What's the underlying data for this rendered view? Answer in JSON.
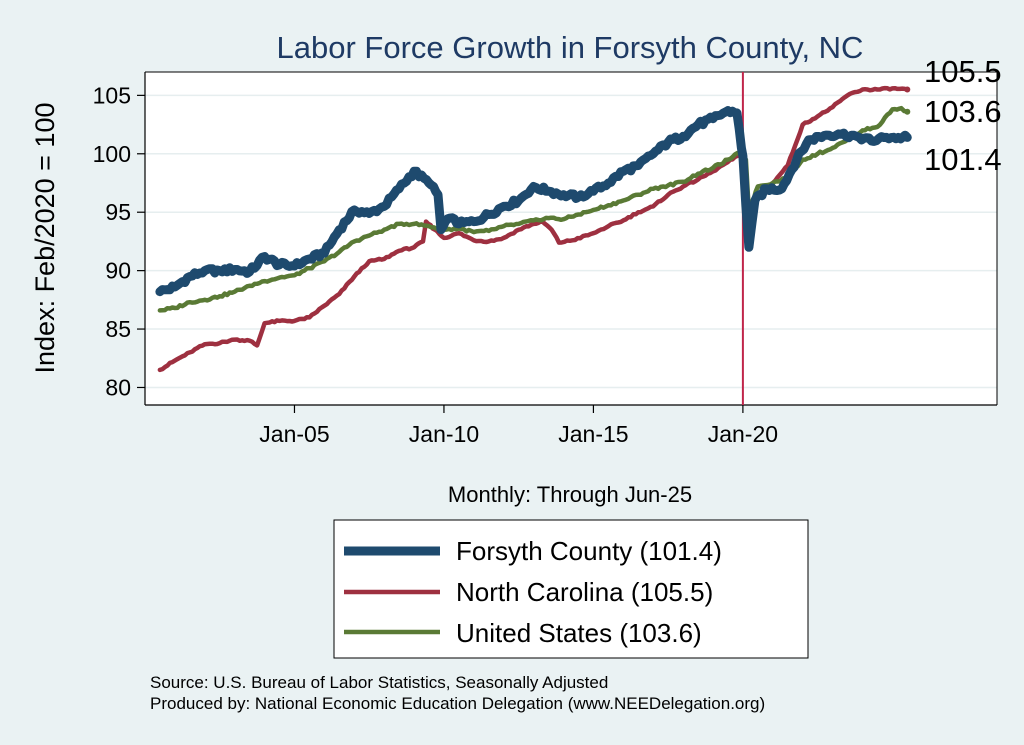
{
  "chart_data": {
    "type": "line",
    "title": "Labor Force Growth in Forsyth  County, NC",
    "xlabel": "Monthly: Through Jun-25",
    "ylabel": "Index: Feb/2020 = 100",
    "xlim": [
      2000.0,
      2028.5
    ],
    "ylim": [
      78.5,
      107.0
    ],
    "y_ticks": [
      80,
      85,
      90,
      95,
      100,
      105
    ],
    "x_ticks": [
      {
        "value": 2005.0,
        "label": "Jan-05"
      },
      {
        "value": 2010.0,
        "label": "Jan-10"
      },
      {
        "value": 2015.0,
        "label": "Jan-15"
      },
      {
        "value": 2020.0,
        "label": "Jan-20"
      }
    ],
    "vertical_line": {
      "x": 2020.0,
      "color": "#c0254a"
    },
    "legend_position": "bottom-center",
    "series": [
      {
        "name": "Forsyth County",
        "color": "#1e4a6e",
        "width": 9,
        "end_label": "101.4",
        "points": [
          [
            2000.5,
            88.2
          ],
          [
            2001.0,
            88.6
          ],
          [
            2001.5,
            89.5
          ],
          [
            2002.0,
            90.0
          ],
          [
            2002.5,
            90.0
          ],
          [
            2003.0,
            90.1
          ],
          [
            2003.5,
            89.9
          ],
          [
            2004.0,
            91.2
          ],
          [
            2004.5,
            90.5
          ],
          [
            2005.0,
            90.4
          ],
          [
            2005.5,
            91.0
          ],
          [
            2006.0,
            91.5
          ],
          [
            2006.5,
            93.5
          ],
          [
            2007.0,
            95.2
          ],
          [
            2007.5,
            94.9
          ],
          [
            2008.0,
            95.5
          ],
          [
            2008.5,
            97.0
          ],
          [
            2009.0,
            98.5
          ],
          [
            2009.5,
            97.5
          ],
          [
            2009.8,
            96.5
          ],
          [
            2009.9,
            93.5
          ],
          [
            2010.2,
            94.5
          ],
          [
            2010.5,
            94.0
          ],
          [
            2011.0,
            94.2
          ],
          [
            2011.5,
            94.8
          ],
          [
            2012.0,
            95.5
          ],
          [
            2012.5,
            96.0
          ],
          [
            2013.0,
            97.2
          ],
          [
            2013.5,
            96.8
          ],
          [
            2014.0,
            96.5
          ],
          [
            2014.5,
            96.3
          ],
          [
            2015.0,
            96.8
          ],
          [
            2015.5,
            97.5
          ],
          [
            2016.0,
            98.5
          ],
          [
            2016.5,
            99.0
          ],
          [
            2017.0,
            100.0
          ],
          [
            2017.5,
            101.0
          ],
          [
            2018.0,
            101.5
          ],
          [
            2018.5,
            102.5
          ],
          [
            2019.0,
            103.0
          ],
          [
            2019.5,
            103.7
          ],
          [
            2019.8,
            103.5
          ],
          [
            2019.95,
            100.5
          ],
          [
            2020.0,
            99.8
          ],
          [
            2020.1,
            95.5
          ],
          [
            2020.2,
            92.0
          ],
          [
            2020.4,
            96.0
          ],
          [
            2020.8,
            97.0
          ],
          [
            2021.3,
            97.0
          ],
          [
            2021.8,
            99.5
          ],
          [
            2022.2,
            101.2
          ],
          [
            2022.8,
            101.6
          ],
          [
            2023.2,
            101.7
          ],
          [
            2023.8,
            101.5
          ],
          [
            2024.3,
            101.1
          ],
          [
            2024.8,
            101.4
          ],
          [
            2025.2,
            101.4
          ],
          [
            2025.5,
            101.4
          ]
        ]
      },
      {
        "name": "North Carolina",
        "color": "#9e3040",
        "width": 4.5,
        "end_label": "105.5",
        "points": [
          [
            2000.5,
            81.5
          ],
          [
            2001.0,
            82.3
          ],
          [
            2001.5,
            83.0
          ],
          [
            2002.0,
            83.7
          ],
          [
            2002.5,
            83.8
          ],
          [
            2003.0,
            84.1
          ],
          [
            2003.5,
            84.0
          ],
          [
            2003.75,
            83.6
          ],
          [
            2004.0,
            85.5
          ],
          [
            2004.5,
            85.7
          ],
          [
            2005.0,
            85.7
          ],
          [
            2005.5,
            86.0
          ],
          [
            2006.0,
            87.0
          ],
          [
            2006.5,
            88.0
          ],
          [
            2007.0,
            89.5
          ],
          [
            2007.5,
            90.8
          ],
          [
            2008.0,
            91.0
          ],
          [
            2008.5,
            91.7
          ],
          [
            2009.0,
            92.0
          ],
          [
            2009.3,
            92.5
          ],
          [
            2009.4,
            94.2
          ],
          [
            2009.7,
            93.5
          ],
          [
            2010.0,
            92.8
          ],
          [
            2010.5,
            93.2
          ],
          [
            2011.0,
            92.6
          ],
          [
            2011.5,
            92.5
          ],
          [
            2012.0,
            92.8
          ],
          [
            2012.5,
            93.5
          ],
          [
            2013.0,
            94.0
          ],
          [
            2013.3,
            94.2
          ],
          [
            2013.6,
            93.5
          ],
          [
            2013.85,
            92.4
          ],
          [
            2014.3,
            92.6
          ],
          [
            2015.0,
            93.2
          ],
          [
            2015.5,
            93.8
          ],
          [
            2016.0,
            94.3
          ],
          [
            2016.5,
            95.0
          ],
          [
            2017.0,
            95.5
          ],
          [
            2017.5,
            96.5
          ],
          [
            2018.0,
            97.2
          ],
          [
            2018.5,
            97.8
          ],
          [
            2019.0,
            98.5
          ],
          [
            2019.5,
            99.3
          ],
          [
            2019.8,
            99.8
          ],
          [
            2020.0,
            100.0
          ],
          [
            2020.1,
            96.0
          ],
          [
            2020.2,
            95.5
          ],
          [
            2020.5,
            96.5
          ],
          [
            2021.0,
            97.5
          ],
          [
            2021.5,
            99.0
          ],
          [
            2022.0,
            102.5
          ],
          [
            2022.5,
            103.2
          ],
          [
            2023.0,
            104.0
          ],
          [
            2023.5,
            105.0
          ],
          [
            2024.0,
            105.5
          ],
          [
            2024.5,
            105.5
          ],
          [
            2025.0,
            105.6
          ],
          [
            2025.5,
            105.5
          ]
        ]
      },
      {
        "name": "United States",
        "color": "#5a7a35",
        "width": 4.5,
        "end_label": "103.6",
        "points": [
          [
            2000.5,
            86.6
          ],
          [
            2001.0,
            86.8
          ],
          [
            2001.5,
            87.3
          ],
          [
            2002.0,
            87.5
          ],
          [
            2002.5,
            87.8
          ],
          [
            2003.0,
            88.2
          ],
          [
            2003.5,
            88.7
          ],
          [
            2004.0,
            89.1
          ],
          [
            2004.5,
            89.4
          ],
          [
            2005.0,
            89.6
          ],
          [
            2005.5,
            90.2
          ],
          [
            2006.0,
            90.8
          ],
          [
            2006.5,
            91.6
          ],
          [
            2007.0,
            92.5
          ],
          [
            2007.5,
            93.0
          ],
          [
            2008.0,
            93.5
          ],
          [
            2008.5,
            94.0
          ],
          [
            2009.0,
            94.0
          ],
          [
            2009.5,
            93.8
          ],
          [
            2010.0,
            93.5
          ],
          [
            2010.5,
            93.6
          ],
          [
            2011.0,
            93.3
          ],
          [
            2011.5,
            93.4
          ],
          [
            2012.0,
            93.8
          ],
          [
            2012.5,
            94.0
          ],
          [
            2013.0,
            94.3
          ],
          [
            2013.5,
            94.5
          ],
          [
            2014.0,
            94.4
          ],
          [
            2014.5,
            94.8
          ],
          [
            2015.0,
            95.2
          ],
          [
            2015.5,
            95.6
          ],
          [
            2016.0,
            96.0
          ],
          [
            2016.5,
            96.5
          ],
          [
            2017.0,
            97.0
          ],
          [
            2017.5,
            97.3
          ],
          [
            2018.0,
            97.6
          ],
          [
            2018.5,
            98.3
          ],
          [
            2019.0,
            98.8
          ],
          [
            2019.5,
            99.5
          ],
          [
            2019.9,
            100.1
          ],
          [
            2020.1,
            99.5
          ],
          [
            2020.2,
            95.0
          ],
          [
            2020.5,
            97.2
          ],
          [
            2021.0,
            97.5
          ],
          [
            2021.5,
            98.0
          ],
          [
            2022.0,
            99.5
          ],
          [
            2022.5,
            100.0
          ],
          [
            2023.0,
            100.5
          ],
          [
            2023.5,
            101.2
          ],
          [
            2024.0,
            102.0
          ],
          [
            2024.5,
            102.3
          ],
          [
            2025.0,
            103.8
          ],
          [
            2025.3,
            103.9
          ],
          [
            2025.5,
            103.6
          ]
        ]
      }
    ],
    "legend": [
      {
        "label": "Forsyth  County (101.4)",
        "color": "#1e4a6e",
        "width": 9
      },
      {
        "label": "North Carolina (105.5)",
        "color": "#9e3040",
        "width": 4.5
      },
      {
        "label": "United States (103.6)",
        "color": "#5a7a35",
        "width": 4.5
      }
    ]
  },
  "source": {
    "line1": "Source: U.S. Bureau of Labor Statistics, Seasonally Adjusted",
    "line2": "Produced by: National Economic Education Delegation (www.NEEDelegation.org)"
  }
}
